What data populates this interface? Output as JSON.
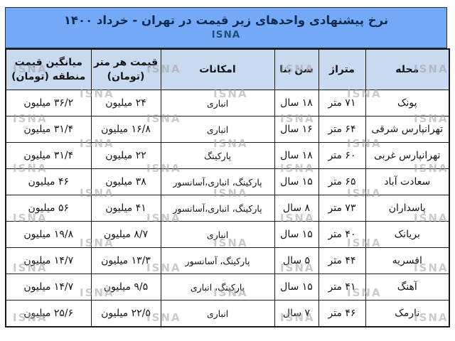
{
  "header": {
    "title": "نرخ پیشنهادی واحدهای زیر قیمت در تهران - خرداد ۱۴۰۰",
    "agency": "ISNA"
  },
  "watermark": "ISNA",
  "colors": {
    "title_bg": "#74a9f7",
    "header_bg": "#c9d9f0",
    "title_text": "#122a52",
    "agency_text": "#1f4e79",
    "border_color": "#1a1a1a",
    "cell_text": "#141414",
    "watermark_text": "#a0a0a0"
  },
  "chart_data": {
    "type": "table",
    "title": "نرخ پیشنهادی واحدهای زیر قیمت در تهران - خرداد ۱۴۰۰",
    "source_label": "ISNA",
    "columns": [
      "محله",
      "متراژ",
      "سن بنا",
      "امکانات",
      "قیمت هر متر (تومان)",
      "میانگین قیمت منطقه (تومان)"
    ],
    "rows": [
      {
        "neighborhood": "پونک",
        "area": "۷۱ متر",
        "building_age": "۱۸ سال",
        "amenities": "انباری",
        "price_per_meter": "۲۴ میلیون",
        "district_avg_price": "۳۶/۲ میلیون"
      },
      {
        "neighborhood": "تهرانپارس شرقی",
        "area": "۶۴ متر",
        "building_age": "۱۶ سال",
        "amenities": "انباری",
        "price_per_meter": "۱۶/۸ میلیون",
        "district_avg_price": "۳۱/۴ میلیون"
      },
      {
        "neighborhood": "تهرانپارس غربی",
        "area": "۶۰ متر",
        "building_age": "۱۸ سال",
        "amenities": "پارکینگ",
        "price_per_meter": "۲۲ میلیون",
        "district_avg_price": "۳۱/۴ میلیون"
      },
      {
        "neighborhood": "سعادت آباد",
        "area": "۶۵ متر",
        "building_age": "۱۵ سال",
        "amenities": "پارکینگ، انباری،آسانسور",
        "price_per_meter": "۳۸ میلیون",
        "district_avg_price": "۴۶ میلیون"
      },
      {
        "neighborhood": "پاسداران",
        "area": "۷۳ متر",
        "building_age": "۸ سال",
        "amenities": "پارکینگ، انباری،آسانسور",
        "price_per_meter": "۴۱ میلیون",
        "district_avg_price": "۵۶ میلیون"
      },
      {
        "neighborhood": "بریانک",
        "area": "۴۰ متر",
        "building_age": "۱۵ سال",
        "amenities": "انباری",
        "price_per_meter": "۸/۷ میلیون",
        "district_avg_price": "۱۹/۸ میلیون"
      },
      {
        "neighborhood": "افسریه",
        "area": "۴۴ متر",
        "building_age": "۵ سال",
        "amenities": "پارکینگ، آسانسور",
        "price_per_meter": "۱۳/۳ میلیون",
        "district_avg_price": "۱۴/۷ میلیون"
      },
      {
        "neighborhood": "آهنگ",
        "area": "۴۱ متر",
        "building_age": "۱۵ سال",
        "amenities": "پارکینگ، انباری",
        "price_per_meter": "۹/۵ میلیون",
        "district_avg_price": "۱۴/۷ میلیون"
      },
      {
        "neighborhood": "نارمک",
        "area": "۴۶ متر",
        "building_age": "۷ سال",
        "amenities": "انباری",
        "price_per_meter": "۲۲/۵ میلیون",
        "district_avg_price": "۲۵/۶ میلیون"
      }
    ]
  }
}
